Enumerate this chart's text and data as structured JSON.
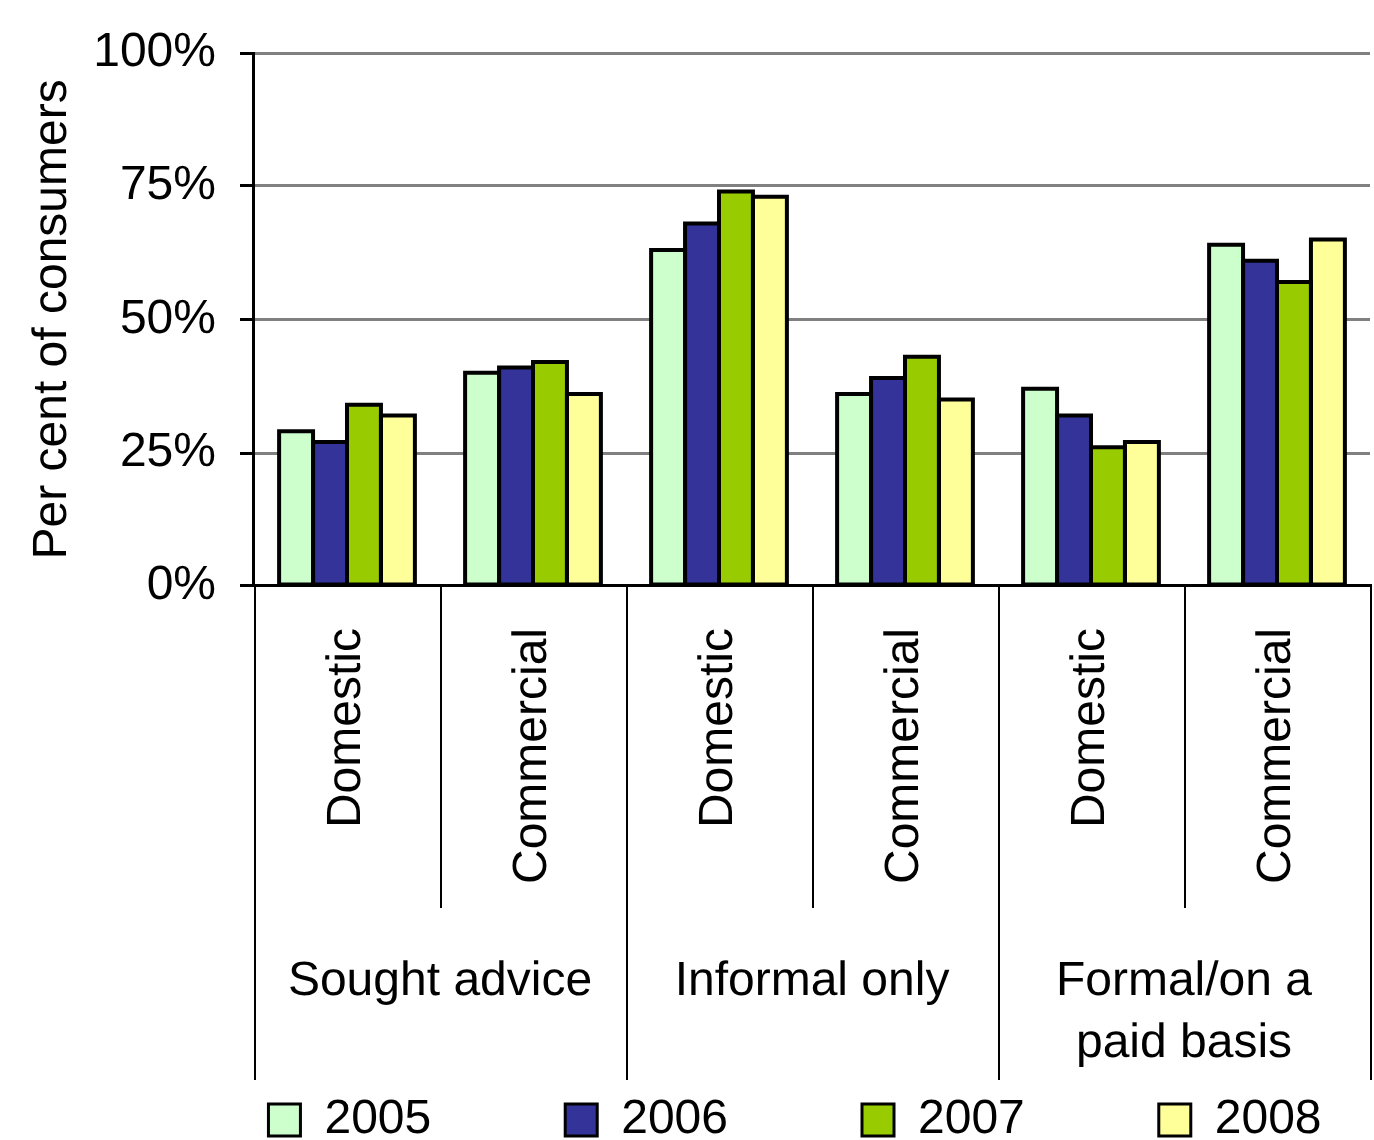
{
  "chart_data": {
    "type": "bar",
    "ylabel": "Per cent of consumers",
    "categories": [
      "Domestic",
      "Commercial",
      "Domestic",
      "Commercial",
      "Domestic",
      "Commercial"
    ],
    "series": [
      {
        "name": "2005",
        "color": "#ccffcc",
        "values": [
          29,
          40,
          63,
          36,
          37,
          64
        ]
      },
      {
        "name": "2006",
        "color": "#333399",
        "values": [
          27,
          41,
          68,
          39,
          32,
          61
        ]
      },
      {
        "name": "2007",
        "color": "#99cc00",
        "values": [
          34,
          42,
          74,
          43,
          26,
          57
        ]
      },
      {
        "name": "2008",
        "color": "#ffff99",
        "values": [
          32,
          36,
          73,
          35,
          27,
          65
        ]
      }
    ],
    "ylim": [
      0,
      100
    ],
    "yticks": [
      {
        "value": 0,
        "label": "0%"
      },
      {
        "value": 25,
        "label": "25%"
      },
      {
        "value": 50,
        "label": "50%"
      },
      {
        "value": 75,
        "label": "75%"
      },
      {
        "value": 100,
        "label": "100%"
      }
    ],
    "grid": "y",
    "legend": "bottom",
    "annotations": [
      "Sought advice",
      "Informal only",
      "Formal/on a paid basis"
    ]
  }
}
